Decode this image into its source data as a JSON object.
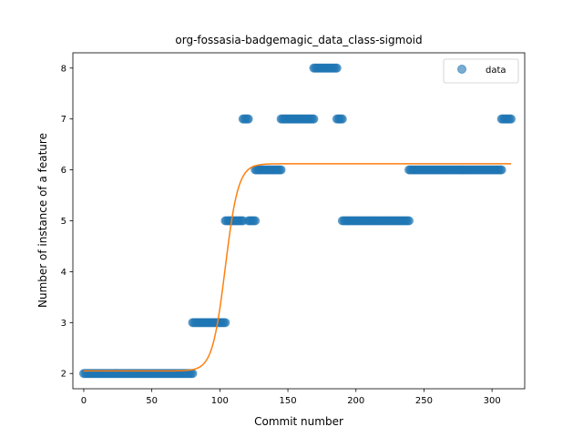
{
  "chart_data": {
    "type": "scatter",
    "title": "org-fossasia-badgemagic_data_class-sigmoid",
    "xlabel": "Commit number",
    "ylabel": "Number of instance of a feature",
    "xlim": [
      -8,
      324
    ],
    "ylim": [
      1.7,
      8.3
    ],
    "xticks": [
      0,
      50,
      100,
      150,
      200,
      250,
      300
    ],
    "yticks": [
      2,
      3,
      4,
      5,
      6,
      7,
      8
    ],
    "grid": false,
    "legend": {
      "position": "top-right",
      "entries": [
        "data"
      ]
    },
    "scatter_series": {
      "name": "data",
      "color": "#1f77b4",
      "segments": [
        {
          "x_start": 0,
          "x_end": 80,
          "y": 2
        },
        {
          "x_start": 80,
          "x_end": 104,
          "y": 3
        },
        {
          "x_start": 104,
          "x_end": 117,
          "y": 5
        },
        {
          "x_start": 117,
          "x_end": 121,
          "y": 7
        },
        {
          "x_start": 121,
          "x_end": 126,
          "y": 5
        },
        {
          "x_start": 126,
          "x_end": 145,
          "y": 6
        },
        {
          "x_start": 145,
          "x_end": 169,
          "y": 7
        },
        {
          "x_start": 169,
          "x_end": 186,
          "y": 8
        },
        {
          "x_start": 186,
          "x_end": 190,
          "y": 7
        },
        {
          "x_start": 190,
          "x_end": 239,
          "y": 5
        },
        {
          "x_start": 239,
          "x_end": 307,
          "y": 6
        },
        {
          "x_start": 307,
          "x_end": 314,
          "y": 7
        }
      ]
    },
    "fit_series": {
      "color": "#ff7f0e",
      "model": "sigmoid",
      "params": {
        "lower": 2.05,
        "upper": 6.12,
        "midpoint": 104,
        "slope": 0.21
      },
      "x_range": [
        0,
        314
      ]
    }
  }
}
